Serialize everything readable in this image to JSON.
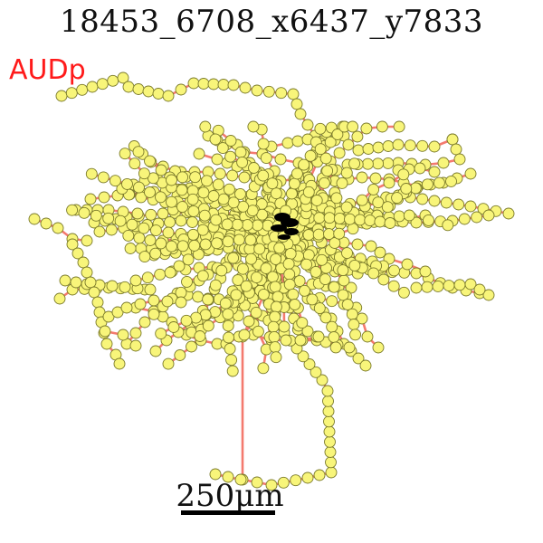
{
  "figure": {
    "title": "18453_6708_x6437_y7833",
    "region_label": "AUDp",
    "scale_bar_label": "250μm"
  },
  "colors": {
    "neurite": "#f47a6e",
    "node_fill": "#f8f57a",
    "node_stroke": "#7a7a2a",
    "soma": "#000000",
    "region_label": "#ff1a1a"
  }
}
